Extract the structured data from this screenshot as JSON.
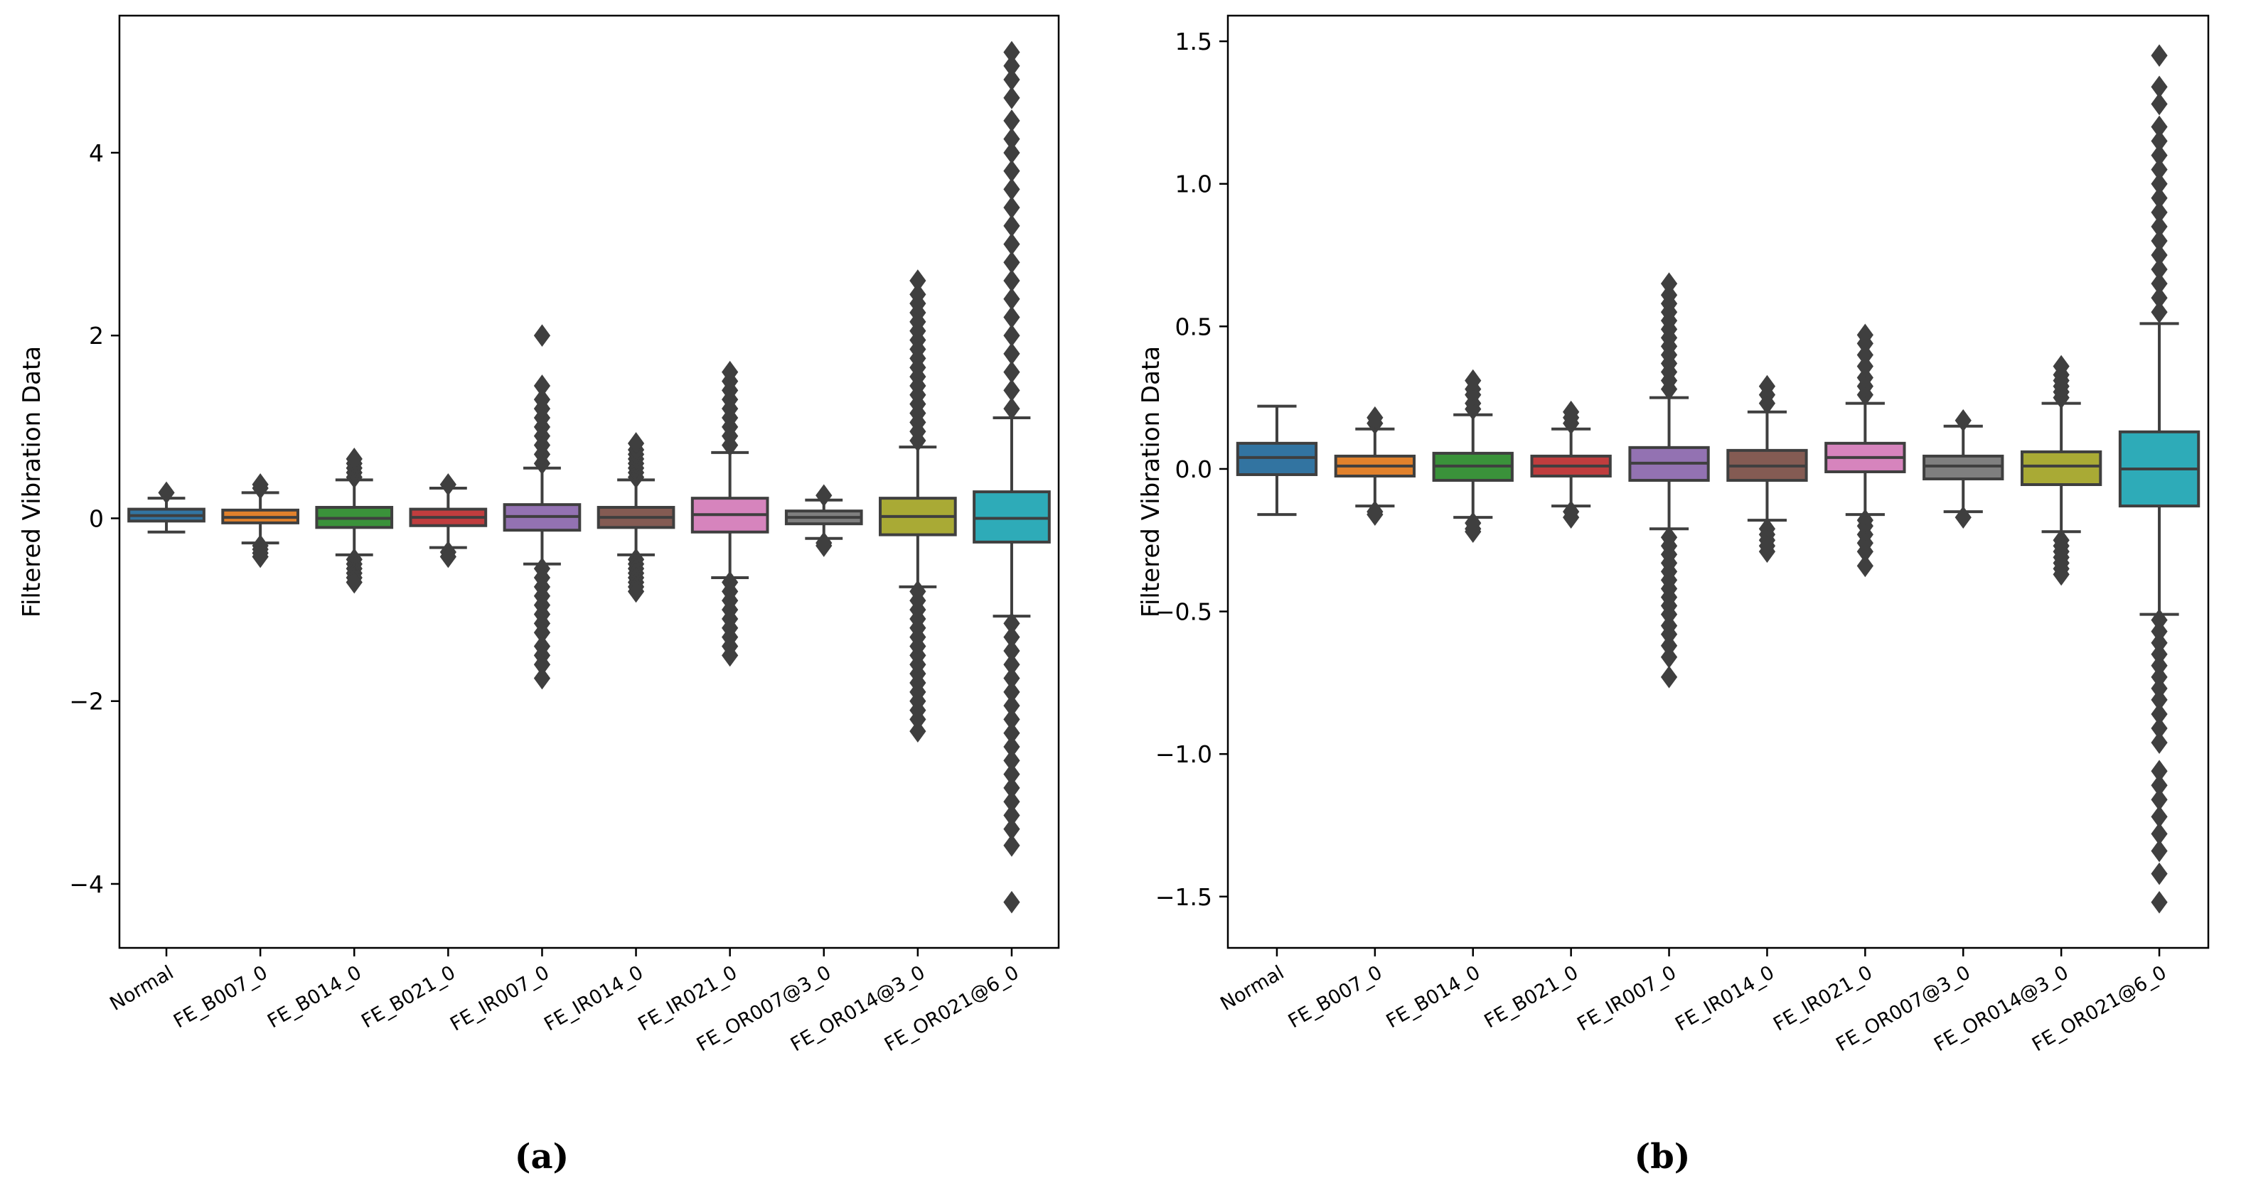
{
  "chart_data": [
    {
      "type": "boxplot",
      "panel_label": "(a)",
      "ylabel": "Filtered Vibration Data",
      "ylim": [
        -4.7,
        5.5
      ],
      "yticks": [
        -4,
        -2,
        0,
        2,
        4
      ],
      "ytick_labels": [
        "−4",
        "−2",
        "0",
        "2",
        "4"
      ],
      "categories": [
        "Normal",
        "FE_B007_0",
        "FE_B014_0",
        "FE_B021_0",
        "FE_IR007_0",
        "FE_IR014_0",
        "FE_IR021_0",
        "FE_OR007@3_0",
        "FE_OR014@3_0",
        "FE_OR021@6_0"
      ],
      "colors": [
        "#3274a1",
        "#e1812c",
        "#3a923a",
        "#c03d3e",
        "#9372b2",
        "#845b53",
        "#d684bd",
        "#7f7f7f",
        "#a9aa35",
        "#2eabb8"
      ],
      "series": [
        {
          "name": "Normal",
          "q1": -0.03,
          "median": 0.03,
          "q3": 0.1,
          "whisker_low": -0.15,
          "whisker_high": 0.22,
          "outliers_low": [],
          "outliers_high": [
            0.28
          ]
        },
        {
          "name": "FE_B007_0",
          "q1": -0.05,
          "median": 0.01,
          "q3": 0.09,
          "whisker_low": -0.27,
          "whisker_high": 0.28,
          "outliers_low": [
            -0.3,
            -0.34,
            -0.38,
            -0.42
          ],
          "outliers_high": [
            0.33,
            0.37
          ]
        },
        {
          "name": "FE_B014_0",
          "q1": -0.1,
          "median": 0.0,
          "q3": 0.12,
          "whisker_low": -0.4,
          "whisker_high": 0.42,
          "outliers_low": [
            -0.45,
            -0.5,
            -0.55,
            -0.6,
            -0.65,
            -0.7
          ],
          "outliers_high": [
            0.45,
            0.5,
            0.55,
            0.6,
            0.65
          ]
        },
        {
          "name": "FE_B021_0",
          "q1": -0.08,
          "median": 0.01,
          "q3": 0.1,
          "whisker_low": -0.32,
          "whisker_high": 0.33,
          "outliers_low": [
            -0.37,
            -0.42
          ],
          "outliers_high": [
            0.37
          ]
        },
        {
          "name": "FE_IR007_0",
          "q1": -0.13,
          "median": 0.02,
          "q3": 0.15,
          "whisker_low": -0.5,
          "whisker_high": 0.55,
          "outliers_low": [
            -0.55,
            -0.65,
            -0.75,
            -0.85,
            -0.95,
            -1.05,
            -1.15,
            -1.25,
            -1.4,
            -1.5,
            -1.6,
            -1.75
          ],
          "outliers_high": [
            0.6,
            0.7,
            0.8,
            0.9,
            1.0,
            1.1,
            1.2,
            1.3,
            1.45,
            2.0
          ]
        },
        {
          "name": "FE_IR014_0",
          "q1": -0.1,
          "median": 0.01,
          "q3": 0.12,
          "whisker_low": -0.4,
          "whisker_high": 0.42,
          "outliers_low": [
            -0.45,
            -0.5,
            -0.55,
            -0.6,
            -0.65,
            -0.7,
            -0.75,
            -0.8
          ],
          "outliers_high": [
            0.45,
            0.5,
            0.55,
            0.6,
            0.65,
            0.7,
            0.75,
            0.82
          ]
        },
        {
          "name": "FE_IR021_0",
          "q1": -0.15,
          "median": 0.04,
          "q3": 0.22,
          "whisker_low": -0.65,
          "whisker_high": 0.72,
          "outliers_low": [
            -0.7,
            -0.8,
            -0.9,
            -1.0,
            -1.1,
            -1.2,
            -1.3,
            -1.4,
            -1.5
          ],
          "outliers_high": [
            0.8,
            0.9,
            1.0,
            1.1,
            1.2,
            1.3,
            1.4,
            1.5,
            1.6
          ]
        },
        {
          "name": "FE_OR007@3_0",
          "q1": -0.06,
          "median": 0.01,
          "q3": 0.08,
          "whisker_low": -0.22,
          "whisker_high": 0.2,
          "outliers_low": [
            -0.27,
            -0.3
          ],
          "outliers_high": [
            0.25
          ]
        },
        {
          "name": "FE_OR014@3_0",
          "q1": -0.18,
          "median": 0.02,
          "q3": 0.22,
          "whisker_low": -0.75,
          "whisker_high": 0.78,
          "outliers_low": [
            -0.8,
            -0.9,
            -1.0,
            -1.1,
            -1.2,
            -1.3,
            -1.4,
            -1.5,
            -1.6,
            -1.7,
            -1.8,
            -1.9,
            -2.0,
            -2.1,
            -2.2,
            -2.33
          ],
          "outliers_high": [
            0.85,
            0.95,
            1.05,
            1.15,
            1.25,
            1.35,
            1.45,
            1.55,
            1.65,
            1.75,
            1.85,
            1.95,
            2.05,
            2.15,
            2.25,
            2.35,
            2.45,
            2.6
          ]
        },
        {
          "name": "FE_OR021@6_0",
          "q1": -0.26,
          "median": 0.0,
          "q3": 0.29,
          "whisker_low": -1.07,
          "whisker_high": 1.1,
          "outliers_low": [
            -1.15,
            -1.3,
            -1.45,
            -1.6,
            -1.75,
            -1.9,
            -2.05,
            -2.2,
            -2.35,
            -2.5,
            -2.65,
            -2.8,
            -2.95,
            -3.1,
            -3.25,
            -3.4,
            -3.58,
            -4.2
          ],
          "outliers_high": [
            1.2,
            1.4,
            1.6,
            1.8,
            2.0,
            2.2,
            2.4,
            2.6,
            2.8,
            3.0,
            3.2,
            3.4,
            3.6,
            3.8,
            4.0,
            4.15,
            4.35,
            4.6,
            4.8,
            4.95,
            5.1
          ]
        }
      ]
    },
    {
      "type": "boxplot",
      "panel_label": "(b)",
      "ylabel": "Filtered Vibration Data",
      "ylim": [
        -1.68,
        1.59
      ],
      "yticks": [
        -1.5,
        -1.0,
        -0.5,
        0.0,
        0.5,
        1.0,
        1.5
      ],
      "ytick_labels": [
        "−1.5",
        "−1.0",
        "−0.5",
        "0.0",
        "0.5",
        "1.0",
        "1.5"
      ],
      "categories": [
        "Normal",
        "FE_B007_0",
        "FE_B014_0",
        "FE_B021_0",
        "FE_IR007_0",
        "FE_IR014_0",
        "FE_IR021_0",
        "FE_OR007@3_0",
        "FE_OR014@3_0",
        "FE_OR021@6_0"
      ],
      "colors": [
        "#3274a1",
        "#e1812c",
        "#3a923a",
        "#c03d3e",
        "#9372b2",
        "#845b53",
        "#d684bd",
        "#7f7f7f",
        "#a9aa35",
        "#2eabb8"
      ],
      "series": [
        {
          "name": "Normal",
          "q1": -0.02,
          "median": 0.04,
          "q3": 0.09,
          "whisker_low": -0.16,
          "whisker_high": 0.22,
          "outliers_low": [],
          "outliers_high": []
        },
        {
          "name": "FE_B007_0",
          "q1": -0.025,
          "median": 0.01,
          "q3": 0.045,
          "whisker_low": -0.13,
          "whisker_high": 0.14,
          "outliers_low": [
            -0.15,
            -0.16
          ],
          "outliers_high": [
            0.16,
            0.18
          ]
        },
        {
          "name": "FE_B014_0",
          "q1": -0.04,
          "median": 0.01,
          "q3": 0.055,
          "whisker_low": -0.17,
          "whisker_high": 0.19,
          "outliers_low": [
            -0.19,
            -0.21,
            -0.22
          ],
          "outliers_high": [
            0.21,
            0.23,
            0.26,
            0.28,
            0.31
          ]
        },
        {
          "name": "FE_B021_0",
          "q1": -0.025,
          "median": 0.01,
          "q3": 0.045,
          "whisker_low": -0.13,
          "whisker_high": 0.14,
          "outliers_low": [
            -0.15,
            -0.17
          ],
          "outliers_high": [
            0.16,
            0.18,
            0.2
          ]
        },
        {
          "name": "FE_IR007_0",
          "q1": -0.04,
          "median": 0.02,
          "q3": 0.075,
          "whisker_low": -0.21,
          "whisker_high": 0.25,
          "outliers_low": [
            -0.24,
            -0.27,
            -0.3,
            -0.33,
            -0.36,
            -0.39,
            -0.42,
            -0.45,
            -0.48,
            -0.51,
            -0.55,
            -0.58,
            -0.62,
            -0.66,
            -0.73
          ],
          "outliers_high": [
            0.28,
            0.31,
            0.34,
            0.37,
            0.4,
            0.43,
            0.46,
            0.49,
            0.52,
            0.55,
            0.58,
            0.61,
            0.65
          ]
        },
        {
          "name": "FE_IR014_0",
          "q1": -0.04,
          "median": 0.01,
          "q3": 0.065,
          "whisker_low": -0.18,
          "whisker_high": 0.2,
          "outliers_low": [
            -0.21,
            -0.23,
            -0.25,
            -0.27,
            -0.29
          ],
          "outliers_high": [
            0.23,
            0.26,
            0.29
          ]
        },
        {
          "name": "FE_IR021_0",
          "q1": -0.01,
          "median": 0.04,
          "q3": 0.09,
          "whisker_low": -0.16,
          "whisker_high": 0.23,
          "outliers_low": [
            -0.18,
            -0.2,
            -0.23,
            -0.26,
            -0.29,
            -0.34
          ],
          "outliers_high": [
            0.26,
            0.29,
            0.32,
            0.36,
            0.4,
            0.44,
            0.47
          ]
        },
        {
          "name": "FE_OR007@3_0",
          "q1": -0.035,
          "median": 0.01,
          "q3": 0.045,
          "whisker_low": -0.15,
          "whisker_high": 0.15,
          "outliers_low": [
            -0.17
          ],
          "outliers_high": [
            0.17
          ]
        },
        {
          "name": "FE_OR014@3_0",
          "q1": -0.055,
          "median": 0.01,
          "q3": 0.06,
          "whisker_low": -0.22,
          "whisker_high": 0.23,
          "outliers_low": [
            -0.25,
            -0.27,
            -0.29,
            -0.31,
            -0.33,
            -0.35,
            -0.37
          ],
          "outliers_high": [
            0.25,
            0.27,
            0.29,
            0.31,
            0.33,
            0.36
          ]
        },
        {
          "name": "FE_OR021@6_0",
          "q1": -0.13,
          "median": 0.0,
          "q3": 0.13,
          "whisker_low": -0.51,
          "whisker_high": 0.51,
          "outliers_low": [
            -0.53,
            -0.57,
            -0.61,
            -0.65,
            -0.69,
            -0.73,
            -0.77,
            -0.81,
            -0.86,
            -0.91,
            -0.96,
            -1.06,
            -1.11,
            -1.16,
            -1.22,
            -1.28,
            -1.34,
            -1.42,
            -1.52
          ],
          "outliers_high": [
            0.55,
            0.6,
            0.65,
            0.7,
            0.75,
            0.8,
            0.85,
            0.9,
            0.95,
            1.0,
            1.05,
            1.1,
            1.15,
            1.2,
            1.28,
            1.34,
            1.45
          ]
        }
      ]
    }
  ]
}
